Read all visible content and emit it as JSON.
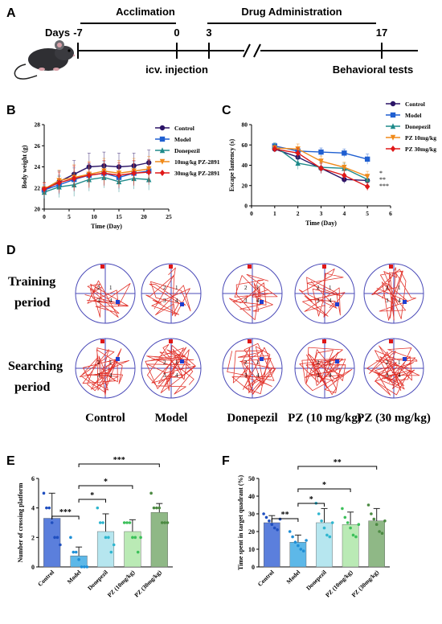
{
  "panels": {
    "A": {
      "letter": "A",
      "days_label": "Days",
      "day_marks": [
        "-7",
        "0",
        "3",
        "17"
      ],
      "phase_acclimation": "Acclimation",
      "phase_drug": "Drug Administration",
      "event_icv": "icv. injection",
      "event_behavior": "Behavioral tests"
    },
    "B": {
      "letter": "B"
    },
    "C": {
      "letter": "C"
    },
    "D": {
      "letter": "D",
      "row_training": [
        "Training",
        "period"
      ],
      "row_searching": [
        "Searching",
        "period"
      ],
      "groups": [
        "Control",
        "Model",
        "Donepezil",
        "PZ (10 mg/kg)",
        "PZ (30 mg/kg)"
      ],
      "quadrant_labels": [
        "1",
        "2",
        "3",
        "4"
      ]
    },
    "E": {
      "letter": "E"
    },
    "F": {
      "letter": "F"
    }
  },
  "chart_data": [
    {
      "panel": "B",
      "type": "line",
      "title": "",
      "xlabel": "Time (Day)",
      "ylabel": "Body weight (g)",
      "xlim": [
        0,
        25
      ],
      "xticks": [
        0,
        5,
        10,
        15,
        20,
        25
      ],
      "ylim": [
        20,
        28
      ],
      "yticks": [
        20,
        22,
        24,
        26,
        28
      ],
      "legend_position": "top-right",
      "x": [
        0,
        3,
        6,
        9,
        12,
        15,
        18,
        21
      ],
      "series": [
        {
          "name": "Control",
          "color": "#2b1467",
          "marker": "circle",
          "values": [
            21.8,
            22.6,
            23.3,
            24.0,
            24.1,
            24.0,
            24.1,
            24.4
          ],
          "errors": [
            0.7,
            1.0,
            1.3,
            1.3,
            1.3,
            1.3,
            1.2,
            1.2
          ]
        },
        {
          "name": "Model",
          "color": "#1f5fd1",
          "marker": "square",
          "values": [
            21.8,
            22.3,
            22.8,
            23.2,
            23.4,
            23.0,
            23.4,
            23.6
          ],
          "errors": [
            0.5,
            0.9,
            1.1,
            1.1,
            1.1,
            1.1,
            1.1,
            1.1
          ]
        },
        {
          "name": "Donepezil",
          "color": "#1e8a8a",
          "marker": "triangle",
          "values": [
            21.6,
            22.1,
            22.3,
            22.8,
            23.0,
            22.6,
            22.9,
            22.8
          ],
          "errors": [
            0.6,
            1.0,
            1.1,
            1.1,
            1.0,
            1.0,
            1.0,
            1.0
          ]
        },
        {
          "name": "10mg/kg PZ-2891",
          "color": "#f08a1a",
          "marker": "triangle-down",
          "values": [
            21.9,
            22.7,
            23.0,
            23.3,
            23.6,
            23.4,
            23.6,
            23.8
          ],
          "errors": [
            0.6,
            1.0,
            1.2,
            1.2,
            1.2,
            1.2,
            1.2,
            1.2
          ]
        },
        {
          "name": "30mg/kg PZ-2891",
          "color": "#e01818",
          "marker": "diamond",
          "values": [
            21.9,
            22.5,
            22.9,
            23.2,
            23.4,
            23.2,
            23.4,
            23.5
          ],
          "errors": [
            0.6,
            1.0,
            1.2,
            1.2,
            1.2,
            1.2,
            1.2,
            1.2
          ]
        }
      ]
    },
    {
      "panel": "C",
      "type": "line",
      "title": "",
      "xlabel": "Time (Day)",
      "ylabel": "Escape lantency (s)",
      "xlim": [
        0,
        6
      ],
      "xticks": [
        0,
        1,
        2,
        3,
        4,
        5,
        6
      ],
      "ylim": [
        0,
        80
      ],
      "yticks": [
        0,
        20,
        40,
        60,
        80
      ],
      "legend_position": "top-right",
      "x": [
        1,
        2,
        3,
        4,
        5
      ],
      "series": [
        {
          "name": "Control",
          "color": "#2b1467",
          "marker": "circle",
          "values": [
            56,
            48,
            37,
            26,
            25
          ],
          "errors": [
            3,
            5,
            5,
            4,
            4
          ]
        },
        {
          "name": "Model",
          "color": "#1f5fd1",
          "marker": "square",
          "values": [
            59,
            54,
            53,
            52,
            46
          ],
          "errors": [
            2,
            4,
            4,
            4,
            5
          ]
        },
        {
          "name": "Donepezil",
          "color": "#1e8a8a",
          "marker": "triangle",
          "values": [
            59,
            42,
            38,
            37,
            26
          ],
          "errors": [
            3,
            6,
            5,
            5,
            5
          ]
        },
        {
          "name": "PZ 10mg/kg",
          "color": "#f08a1a",
          "marker": "triangle-down",
          "values": [
            57,
            56,
            44,
            38,
            29
          ],
          "errors": [
            3,
            5,
            5,
            5,
            5
          ]
        },
        {
          "name": "PZ 30mg/kg",
          "color": "#e01818",
          "marker": "diamond",
          "values": [
            56,
            52,
            37,
            30,
            19
          ],
          "errors": [
            3,
            5,
            5,
            5,
            4
          ]
        }
      ],
      "annotations": [
        "*",
        "**",
        "***"
      ]
    },
    {
      "panel": "E",
      "type": "bar",
      "title": "",
      "xlabel": "",
      "ylabel": "Number of crossing platform",
      "ylim": [
        0,
        6
      ],
      "yticks": [
        0,
        2,
        4,
        6
      ],
      "categories": [
        "Control",
        "Model",
        "Donepezil",
        "PZ (10mg/kg)",
        "PZ (30mg/kg)"
      ],
      "values": [
        3.3,
        0.75,
        2.4,
        2.4,
        3.7
      ],
      "errors": [
        1.7,
        0.6,
        1.2,
        0.8,
        0.6
      ],
      "colors": [
        "#5b7fdc",
        "#5db8e8",
        "#b6e6ef",
        "#baeab5",
        "#8fb886"
      ],
      "point_colors": [
        "#1f4fc0",
        "#1f8fd6",
        "#2fb6cf",
        "#3cc05a",
        "#4c8a42"
      ],
      "points": [
        [
          5,
          4,
          4,
          3,
          2,
          2,
          1.5
        ],
        [
          2,
          1,
          1,
          0.5,
          0,
          0,
          0
        ],
        [
          4,
          3,
          3,
          2,
          2,
          1,
          1.5
        ],
        [
          3,
          3,
          3,
          2,
          2,
          1,
          2
        ],
        [
          5,
          4,
          4,
          4,
          3,
          3,
          3
        ]
      ],
      "significance": [
        {
          "from": 0,
          "to": 1,
          "label": "***"
        },
        {
          "from": 1,
          "to": 2,
          "label": "*"
        },
        {
          "from": 1,
          "to": 3,
          "label": "*"
        },
        {
          "from": 1,
          "to": 4,
          "label": "***"
        }
      ]
    },
    {
      "panel": "F",
      "type": "bar",
      "title": "",
      "xlabel": "",
      "ylabel": "Time spent in target quadrant (%)",
      "ylim": [
        0,
        50
      ],
      "yticks": [
        0,
        10,
        20,
        30,
        40,
        50
      ],
      "categories": [
        "Control",
        "Model",
        "Donepezil",
        "PZ (10mg/kg)",
        "PZ (30mg/kg)"
      ],
      "values": [
        25,
        14,
        25,
        24,
        26
      ],
      "errors": [
        4,
        4,
        8,
        7,
        7
      ],
      "colors": [
        "#5b7fdc",
        "#5db8e8",
        "#b6e6ef",
        "#baeab5",
        "#8fb886"
      ],
      "point_colors": [
        "#1f4fc0",
        "#1f8fd6",
        "#2fb6cf",
        "#3cc05a",
        "#4c8a42"
      ],
      "points": [
        [
          30,
          28,
          26,
          24,
          22,
          21,
          27
        ],
        [
          20,
          17,
          14,
          12,
          10,
          9,
          15
        ],
        [
          36,
          30,
          26,
          22,
          18,
          17,
          25
        ],
        [
          33,
          28,
          25,
          22,
          18,
          17,
          24
        ],
        [
          35,
          30,
          27,
          24,
          20,
          19,
          26
        ]
      ],
      "significance": [
        {
          "from": 0,
          "to": 1,
          "label": "**"
        },
        {
          "from": 1,
          "to": 2,
          "label": "*"
        },
        {
          "from": 1,
          "to": 3,
          "label": "*"
        },
        {
          "from": 1,
          "to": 4,
          "label": "**"
        }
      ]
    }
  ]
}
